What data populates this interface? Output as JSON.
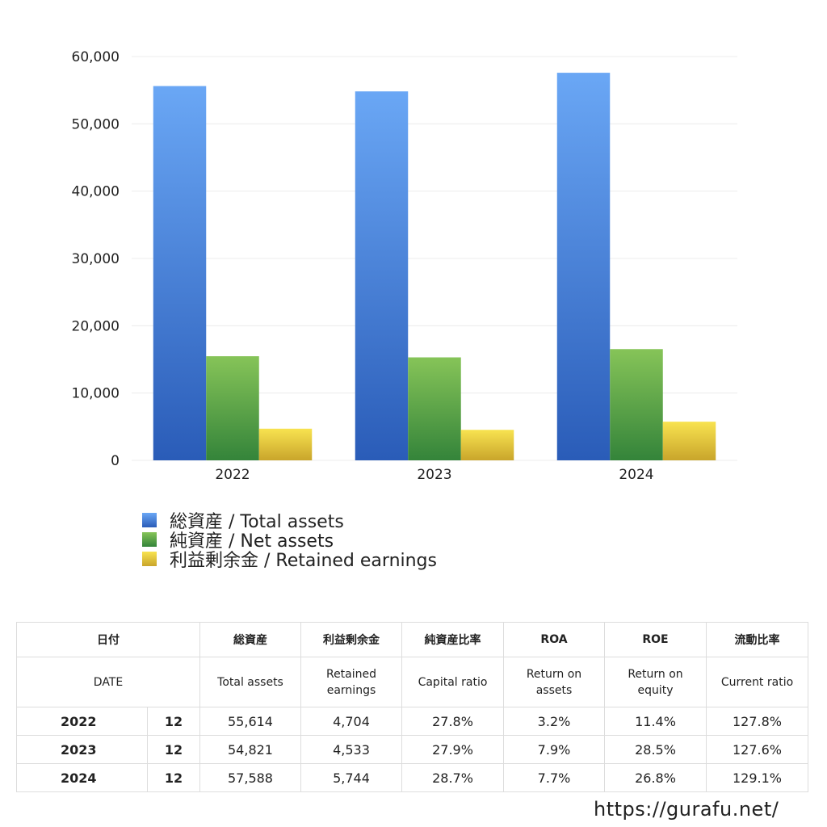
{
  "chart_data": {
    "type": "bar",
    "categories": [
      "2022",
      "2023",
      "2024"
    ],
    "series": [
      {
        "name": "総資産 / Total assets",
        "values": [
          55614,
          54821,
          57588
        ],
        "color": "#4a86e0"
      },
      {
        "name": "純資産 / Net assets",
        "values": [
          15470,
          15300,
          16530
        ],
        "color": "#5aa548"
      },
      {
        "name": "利益剰余金 / Retained earnings",
        "values": [
          4704,
          4533,
          5744
        ],
        "color": "#e8cf3e"
      }
    ],
    "ylim": [
      0,
      60000
    ],
    "yticks": [
      "0",
      "10,000",
      "20,000",
      "30,000",
      "40,000",
      "50,000",
      "60,000"
    ],
    "grid": true,
    "legend_position": "bottom-left"
  },
  "table": {
    "header_ja": [
      "日付",
      "総資産",
      "利益剰余金",
      "純資産比率",
      "ROA",
      "ROE",
      "流動比率"
    ],
    "header_en": {
      "date": "DATE",
      "total_assets": "Total assets",
      "retained_1": "Retained",
      "retained_2": "earnings",
      "capital_ratio": "Capital ratio",
      "roa_1": "Return on",
      "roa_2": "assets",
      "roe_1": "Return on",
      "roe_2": "equity",
      "current_ratio": "Current ratio"
    },
    "rows": [
      {
        "year": "2022",
        "month": "12",
        "total_assets": "55,614",
        "retained": "4,704",
        "capital_ratio": "27.8%",
        "roa": "3.2%",
        "roe": "11.4%",
        "current_ratio": "127.8%"
      },
      {
        "year": "2023",
        "month": "12",
        "total_assets": "54,821",
        "retained": "4,533",
        "capital_ratio": "27.9%",
        "roa": "7.9%",
        "roe": "28.5%",
        "current_ratio": "127.6%"
      },
      {
        "year": "2024",
        "month": "12",
        "total_assets": "57,588",
        "retained": "5,744",
        "capital_ratio": "28.7%",
        "roa": "7.7%",
        "roe": "26.8%",
        "current_ratio": "129.1%"
      }
    ]
  },
  "source": "https://gurafu.net/"
}
